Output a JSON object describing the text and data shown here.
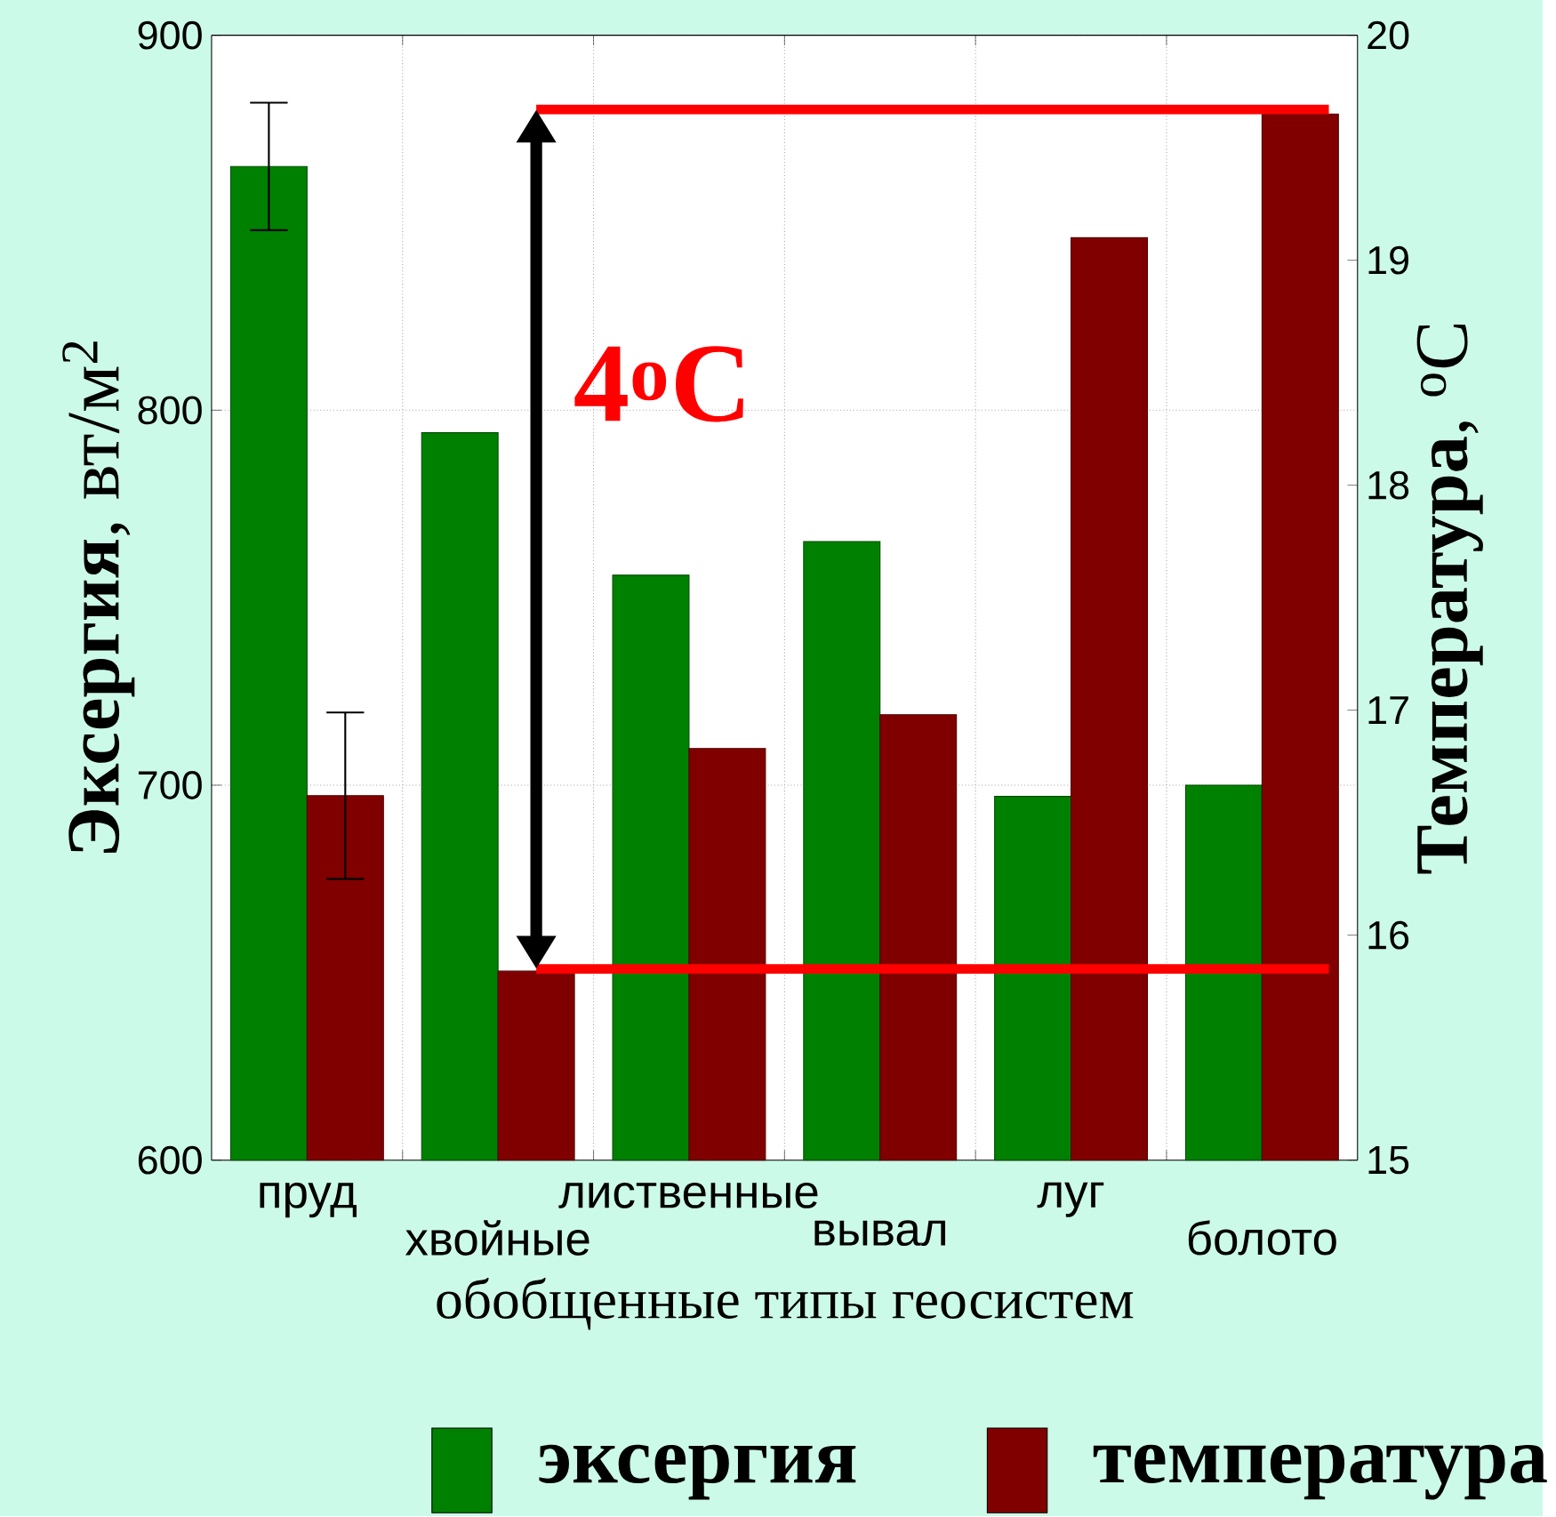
{
  "chart_data": {
    "type": "bar",
    "xlabel": "обобщенные типы геосистем",
    "ylabel": "**Эксергия**, вт/м$^{2}$",
    "y2label": "**Температура**, $^{o}$C",
    "categories": [
      "пруд",
      "хвойные",
      "лиственные",
      "вывал",
      "луг",
      "болото"
    ],
    "series": [
      {
        "name": "эксергия",
        "color": "#008000",
        "values": [
          865,
          794,
          756,
          765,
          697,
          700
        ],
        "errors": [
          17,
          null,
          null,
          null,
          null,
          null
        ]
      },
      {
        "name": "температура",
        "color": "#800000",
        "axis": "y2",
        "values": [
          16.62,
          15.84,
          16.83,
          16.98,
          19.1,
          19.65
        ],
        "errors": [
          0.37,
          null,
          null,
          null,
          null,
          null
        ]
      }
    ],
    "ylim": [
      600,
      900
    ],
    "yticks": [
      600,
      700,
      800,
      900
    ],
    "y2lim": [
      15,
      20
    ],
    "y2ticks": [
      15,
      16,
      17,
      18,
      19,
      20
    ],
    "ref_lines": [
      {
        "axis": "y2",
        "value": 19.67,
        "color": "#ff0000"
      },
      {
        "axis": "y2",
        "value": 15.85,
        "color": "#ff0000"
      }
    ],
    "annotations": [
      "4$^{o}$C"
    ],
    "grid": true,
    "legend": "bottom"
  }
}
